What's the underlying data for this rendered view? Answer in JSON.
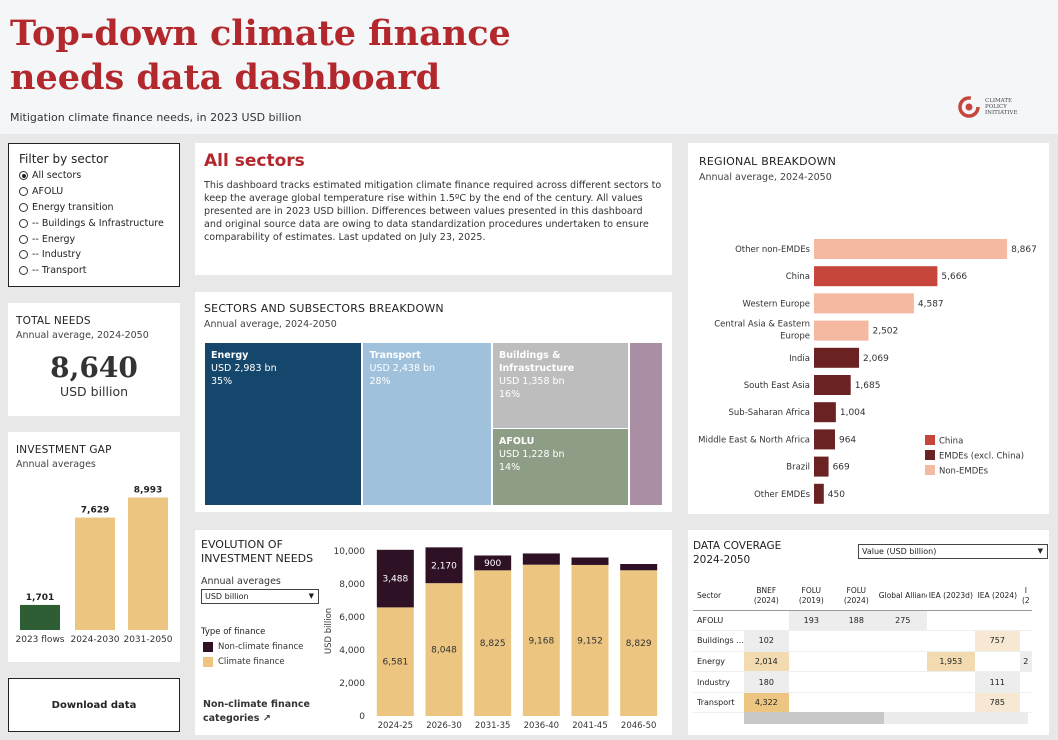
{
  "header": {
    "title_line1": "Top-down climate finance",
    "title_line2": "needs data dashboard",
    "subtitle": "Mitigation climate finance needs, in 2023 USD billion",
    "logo_text": [
      "CLIMATE",
      "POLICY",
      "INITIATIVE"
    ]
  },
  "filter": {
    "title": "Filter by sector",
    "options": [
      "All sectors",
      "AFOLU",
      "Energy transition",
      "-- Buildings & Infrastructure",
      "-- Energy",
      "-- Industry",
      "-- Transport"
    ],
    "selected": "All sectors"
  },
  "total_needs": {
    "label": "TOTAL NEEDS",
    "sub": "Annual average, 2024-2050",
    "value": "8,640",
    "unit": "USD billion"
  },
  "investment_gap": {
    "label": "INVESTMENT GAP",
    "sub": "Annual averages"
  },
  "download": {
    "label": "Download data"
  },
  "intro": {
    "heading": "All sectors",
    "body": "This dashboard tracks estimated mitigation climate finance required across different sectors to keep the average global temperature rise within 1.5ºC by the end of the century. All values presented are in 2023 USD billion. Differences between values presented in this dashboard and original source data are owing to data standardization procedures undertaken to ensure comparability of estimates. Last updated on July 23, 2025."
  },
  "treemap_section": {
    "heading": "SECTORS AND SUBSECTORS BREAKDOWN",
    "sub": "Annual average, 2024-2050"
  },
  "evolution": {
    "heading": "EVOLUTION OF INVESTMENT NEEDS",
    "sub": "Annual averages",
    "select_value": "USD billion",
    "legend_title": "Type of finance",
    "legend": [
      "Non-climate finance",
      "Climate finance"
    ],
    "link": "Non-climate finance categories ↗"
  },
  "regional": {
    "heading": "REGIONAL BREAKDOWN",
    "sub": "Annual average, 2024-2050"
  },
  "coverage": {
    "heading": "DATA COVERAGE",
    "sub": "2024-2050",
    "select_value": "Value (USD billion)",
    "columns": [
      "Sector",
      "BNEF (2024)",
      "FOLU (2019)",
      "FOLU (2024)",
      "Global Alliance f...",
      "IEA (2023d)",
      "IEA (2024)",
      "I (2"
    ],
    "rows": [
      {
        "sector": "AFOLU",
        "cells": [
          "",
          "193",
          "188",
          "275",
          "",
          "",
          ""
        ]
      },
      {
        "sector": "Buildings ...",
        "cells": [
          "102",
          "",
          "",
          "",
          "",
          "757",
          ""
        ]
      },
      {
        "sector": "Energy",
        "cells": [
          "2,014",
          "",
          "",
          "",
          "1,953",
          "",
          "2"
        ]
      },
      {
        "sector": "Industry",
        "cells": [
          "180",
          "",
          "",
          "",
          "",
          "111",
          ""
        ]
      },
      {
        "sector": "Transport",
        "cells": [
          "4,322",
          "",
          "",
          "",
          "",
          "785",
          ""
        ]
      }
    ]
  },
  "colors": {
    "accent": "#b3282d",
    "energy": "#14476b",
    "transport": "#a0c1dc",
    "buildings": "#bdbdbd",
    "afolu": "#8e9e86",
    "other_tile": "#a98ea4",
    "climate": "#ecc581",
    "non_climate": "#2e1125",
    "flows": "#2e5e34",
    "china": "#c6463b",
    "emdes": "#6b2222",
    "non_emdes": "#f5b8a1"
  },
  "chart_data": [
    {
      "type": "bar",
      "name": "investment_gap",
      "categories": [
        "2023 flows",
        "2024-2030",
        "2031-2050"
      ],
      "values": [
        1701,
        7629,
        8993
      ],
      "value_labels": [
        "1,701",
        "7,629",
        "8,993"
      ],
      "ylim": [
        0,
        9500
      ]
    },
    {
      "type": "treemap",
      "name": "sectors_breakdown",
      "items": [
        {
          "label": "Energy",
          "value_text": "USD 2,983 bn",
          "share_text": "35%",
          "value": 2983
        },
        {
          "label": "Transport",
          "value_text": "USD 2,438 bn",
          "share_text": "28%",
          "value": 2438
        },
        {
          "label": "Buildings & Infrastructure",
          "value_text": "USD 1,358 bn",
          "share_text": "16%",
          "value": 1358
        },
        {
          "label": "AFOLU",
          "value_text": "USD 1,228 bn",
          "share_text": "14%",
          "value": 1228
        },
        {
          "label": "",
          "value_text": "",
          "share_text": "",
          "value": 633
        }
      ]
    },
    {
      "type": "bar",
      "name": "evolution_of_investment_needs",
      "stacked": true,
      "categories": [
        "2024-25",
        "2026-30",
        "2031-35",
        "2036-40",
        "2041-45",
        "2046-50"
      ],
      "series": [
        {
          "name": "Climate finance",
          "values": [
            6581,
            8048,
            8825,
            9168,
            9152,
            8829
          ],
          "labels": [
            "6,581",
            "8,048",
            "8,825",
            "9,168",
            "9,152",
            "8,829"
          ]
        },
        {
          "name": "Non-climate finance",
          "values": [
            3488,
            2170,
            900,
            680,
            450,
            380
          ],
          "labels": [
            "3,488",
            "2,170",
            "900",
            "",
            "",
            ""
          ]
        }
      ],
      "ylabel": "USD billion",
      "yticks": [
        0,
        2000,
        4000,
        6000,
        8000,
        10000
      ],
      "ytick_labels": [
        "0",
        "2,000",
        "4,000",
        "6,000",
        "8,000",
        "10,000"
      ],
      "ylim": [
        0,
        10300
      ]
    },
    {
      "type": "bar",
      "name": "regional_breakdown",
      "orientation": "horizontal",
      "categories": [
        "Other non-EMDEs",
        "China",
        "Western Europe",
        "Central Asia & Eastern Europe",
        "India",
        "South East Asia",
        "Sub-Saharan Africa",
        "Middle East & North Africa",
        "Brazil",
        "Other EMDEs"
      ],
      "values": [
        8867,
        5666,
        4587,
        2502,
        2069,
        1685,
        1004,
        964,
        669,
        450
      ],
      "value_labels": [
        "8,867",
        "5,666",
        "4,587",
        "2,502",
        "2,069",
        "1,685",
        "1,004",
        "964",
        "669",
        "450"
      ],
      "groups": [
        "non_emdes",
        "china",
        "non_emdes",
        "non_emdes",
        "emdes",
        "emdes",
        "emdes",
        "emdes",
        "emdes",
        "emdes"
      ],
      "legend": [
        {
          "key": "china",
          "label": "China"
        },
        {
          "key": "emdes",
          "label": "EMDEs (excl. China)"
        },
        {
          "key": "non_emdes",
          "label": "Non-EMDEs"
        }
      ],
      "legend_position": "bottom-right"
    }
  ]
}
